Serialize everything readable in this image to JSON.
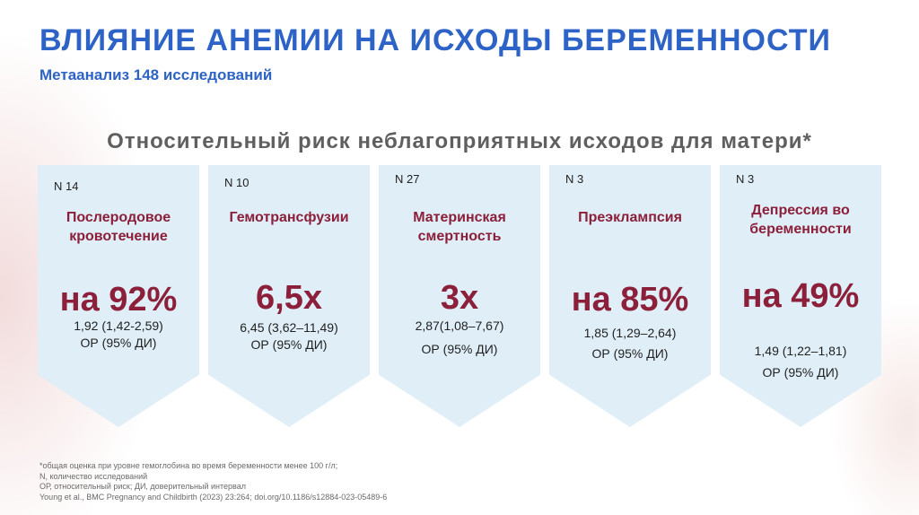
{
  "title": "ВЛИЯНИЕ АНЕМИИ НА ИСХОДЫ БЕРЕМЕННОСТИ",
  "subtitle": "Метаанализ 148 исследований",
  "heading": "Относительный риск неблагоприятных исходов для матери*",
  "cards": [
    {
      "n": "N 14",
      "outcome_lines": [
        "Послеродовое",
        "кровотечение"
      ],
      "value": "на 92%",
      "ci": "1,92 (1,42-2,59)",
      "ci_label": "ОР (95% ДИ)"
    },
    {
      "n": "N 10",
      "outcome_lines": [
        "Гемотрансфузии"
      ],
      "value": "6,5х",
      "ci": "6,45 (3,62–11,49)",
      "ci_label": "ОР (95% ДИ)"
    },
    {
      "n": "N 27",
      "outcome_lines": [
        "Материнская",
        "смертность"
      ],
      "value": "3х",
      "ci": "2,87(1,08–7,67)",
      "ci_label": "ОР (95% ДИ)"
    },
    {
      "n": "N 3",
      "outcome_lines": [
        "Преэклампсия"
      ],
      "value": "на 85%",
      "ci": "1,85 (1,29–2,64)",
      "ci_label": "ОР (95% ДИ)"
    },
    {
      "n": "N 3",
      "outcome_lines": [
        "Депрессия во",
        "беременности"
      ],
      "value": "на 49%",
      "ci": "1,49 (1,22–1,81)",
      "ci_label": "ОР (95% ДИ)"
    }
  ],
  "footnotes": [
    "*общая оценка при уровне гемоглобина во время беременности менее 100 г/л;",
    " N, количество исследований",
    "ОР, относительный риск; ДИ, доверительный интервал",
    "Young et al., BMC Pregnancy and Childbirth (2023) 23:264; doi.org/10.1186/s12884-023-05489-6"
  ],
  "colors": {
    "title": "#2d63c6",
    "accent": "#8c1f3a",
    "card": "#dfeef7",
    "heading": "#5f5f5f"
  }
}
